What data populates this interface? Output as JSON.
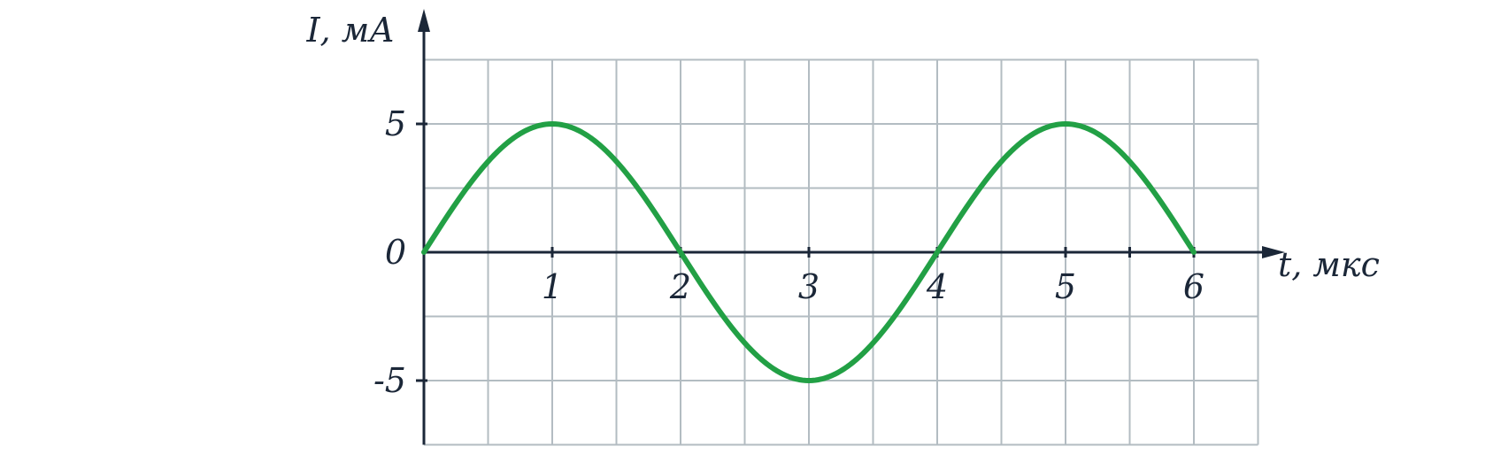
{
  "chart_data": {
    "type": "line",
    "title": "",
    "xlabel": "t, мкс",
    "ylabel": "I, мА",
    "xlim": [
      0,
      6.5
    ],
    "ylim": [
      -7.5,
      7.5
    ],
    "grid": true,
    "grid_step_x": 0.5,
    "grid_step_y": 2.5,
    "x_ticks": [
      {
        "value": 1,
        "label": "1"
      },
      {
        "value": 2,
        "label": "2"
      },
      {
        "value": 3,
        "label": "3"
      },
      {
        "value": 4,
        "label": "4"
      },
      {
        "value": 5,
        "label": "5"
      },
      {
        "value": 6,
        "label": "6"
      }
    ],
    "x_minor_marks": [
      5.5
    ],
    "y_ticks": [
      {
        "value": 5,
        "label": "5"
      },
      {
        "value": 0,
        "label": "0"
      },
      {
        "value": -5,
        "label": "-5"
      }
    ],
    "series": [
      {
        "x": [
          0,
          0.25,
          0.5,
          0.75,
          1,
          1.25,
          1.5,
          1.75,
          2,
          2.25,
          2.5,
          2.75,
          3,
          3.25,
          3.5,
          3.75,
          4,
          4.25,
          4.5,
          4.75,
          5,
          5.25,
          5.5,
          5.75,
          6
        ],
        "values": [
          0,
          1.91,
          3.54,
          4.62,
          5,
          4.62,
          3.54,
          1.91,
          0,
          -1.91,
          -3.54,
          -4.62,
          -5,
          -4.62,
          -3.54,
          -1.91,
          0,
          1.91,
          3.54,
          4.62,
          5,
          4.62,
          3.54,
          1.91,
          0
        ]
      }
    ],
    "colors": {
      "curve": "#22a045",
      "axis": "#1b2738",
      "grid": "#b3bcc2"
    }
  }
}
